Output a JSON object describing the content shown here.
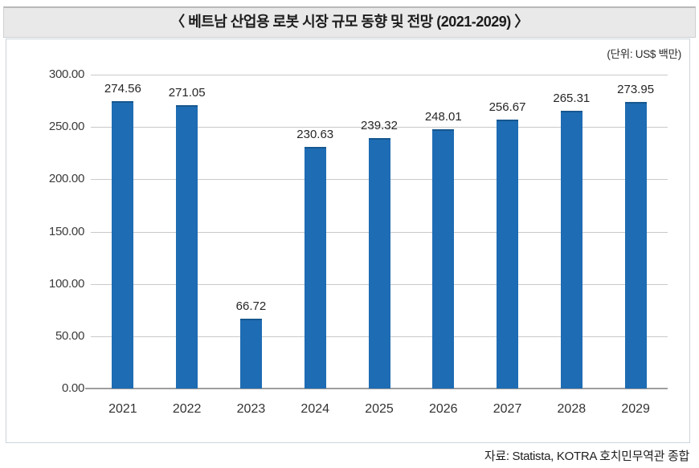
{
  "title": "〈 베트남 산업용 로봇 시장 규모 동향 및 전망 (2021-2029) 〉",
  "unit_label": "(단위: US$ 백만)",
  "source": "자료: Statista, KOTRA 호치민무역관 종합",
  "colors": {
    "bar": "#1e6cb3",
    "title_bar_bg": "#e9e9e9",
    "gridline": "#c9c9c9",
    "axis": "#9e9e9e"
  },
  "chart_data": {
    "type": "bar",
    "title": "베트남 산업용 로봇 시장 규모 동향 및 전망 (2021-2029)",
    "categories": [
      "2021",
      "2022",
      "2023",
      "2024",
      "2025",
      "2026",
      "2027",
      "2028",
      "2029"
    ],
    "values": [
      274.56,
      271.05,
      66.72,
      230.63,
      239.32,
      248.01,
      256.67,
      265.31,
      273.95
    ],
    "value_labels": [
      "274.56",
      "271.05",
      "66.72",
      "230.63",
      "239.32",
      "248.01",
      "256.67",
      "265.31",
      "273.95"
    ],
    "unit": "US$ 백만",
    "xlabel": "",
    "ylabel": "",
    "ylim": [
      0,
      300
    ],
    "yticks": [
      0,
      50,
      100,
      150,
      200,
      250,
      300
    ],
    "ytick_labels": [
      "0.00",
      "50.00",
      "100.00",
      "150.00",
      "200.00",
      "250.00",
      "300.00"
    ],
    "grid": true,
    "legend": false,
    "data_labels_shown": true
  }
}
